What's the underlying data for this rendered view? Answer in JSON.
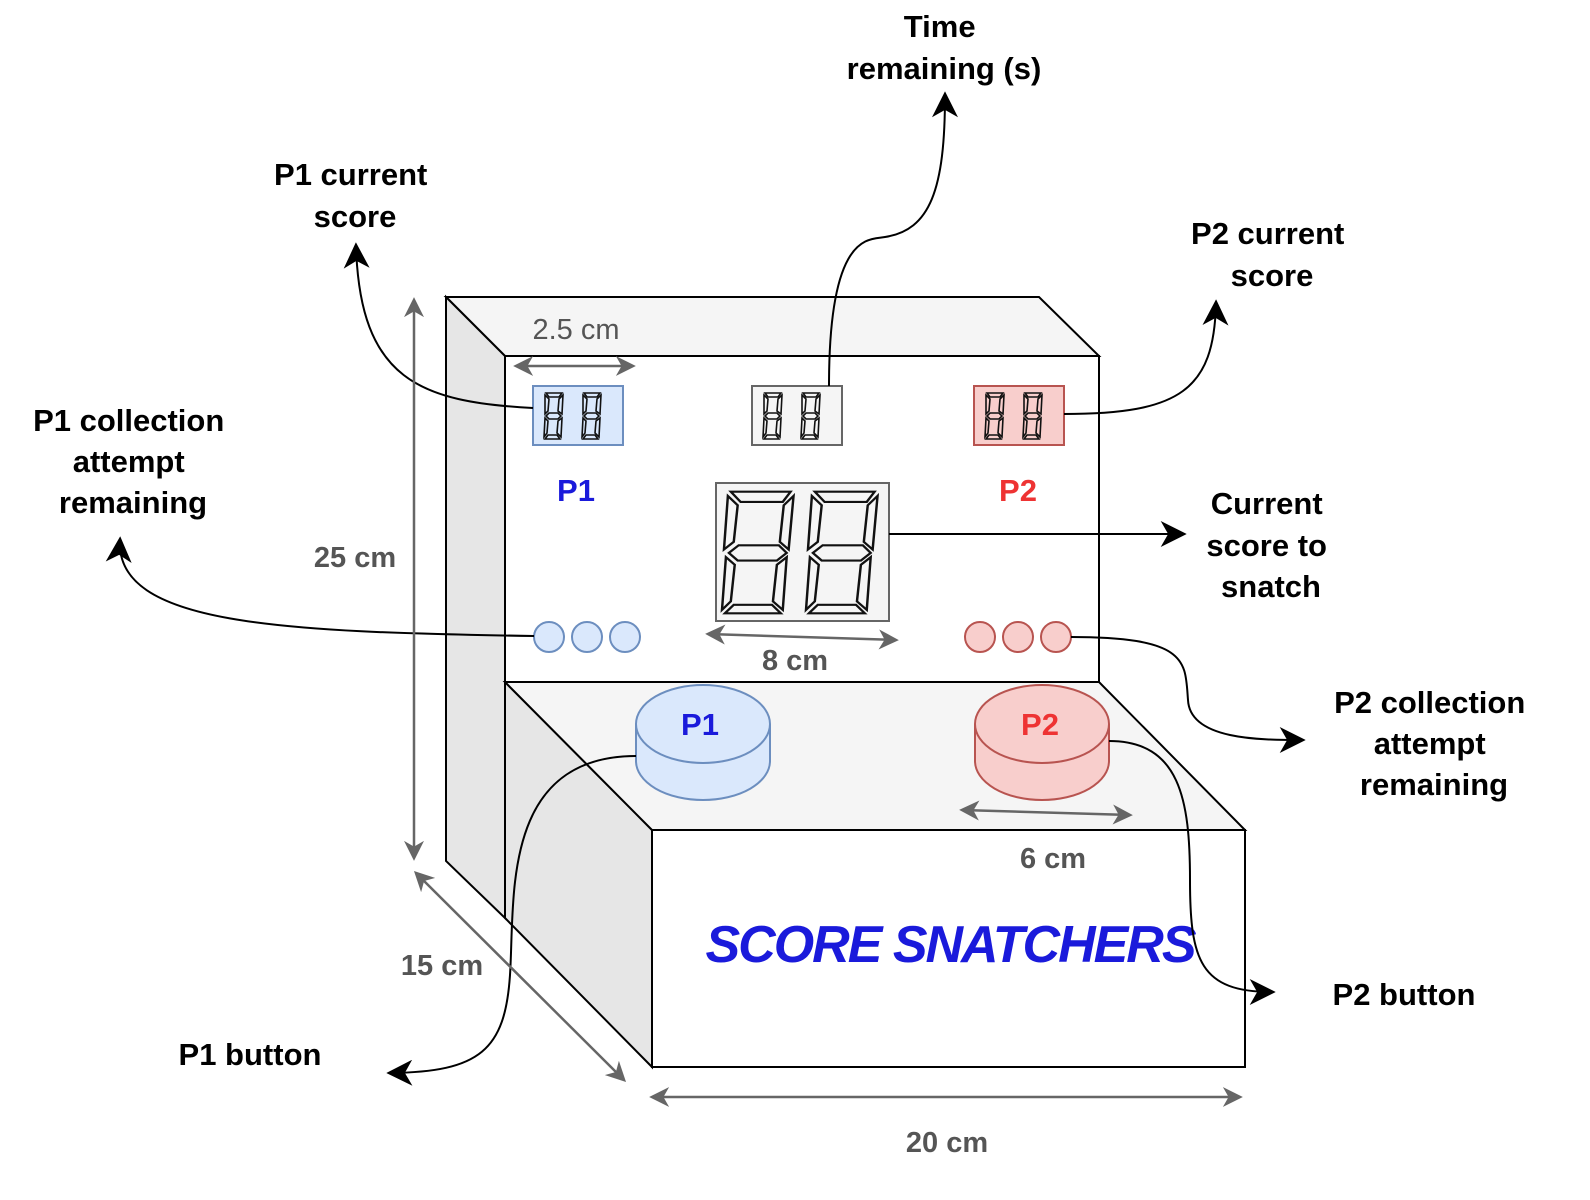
{
  "title": "SCORE SNATCHERS",
  "callouts": {
    "time_remaining": [
      "Time",
      "remaining (s)"
    ],
    "p1_current_score": [
      "P1 current",
      "score"
    ],
    "p2_current_score": [
      "P2 current",
      "score"
    ],
    "p1_attempts": [
      "P1 collection",
      "attempt",
      "remaining"
    ],
    "current_score_to_snatch": [
      "Current",
      "score to",
      "snatch"
    ],
    "p2_attempts": [
      "P2 collection",
      "attempt",
      "remaining"
    ],
    "p1_button": "P1 button",
    "p2_button": "P2 button"
  },
  "dimensions": {
    "display_width": "2.5 cm",
    "height": "25 cm",
    "center_display_width": "8 cm",
    "button_diameter": "6 cm",
    "depth": "15 cm",
    "width": "20 cm"
  },
  "players": {
    "p1": {
      "label": "P1",
      "button_label": "P1",
      "attempt_leds": 3,
      "color": "#1a1adb",
      "fill": "#dae8fc",
      "stroke": "#6c8ebf"
    },
    "p2": {
      "label": "P2",
      "button_label": "P2",
      "attempt_leds": 3,
      "color": "#ee3333",
      "fill": "#f8cecc",
      "stroke": "#b85450"
    }
  },
  "colors": {
    "box_face": "#ffffff",
    "box_side": "#e6e6e6",
    "box_top": "#f5f5f5",
    "brand": "#1a1adb",
    "dimension_line": "#666666"
  }
}
